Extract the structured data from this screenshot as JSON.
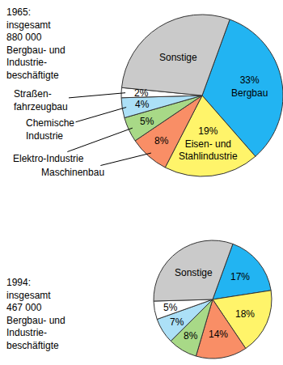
{
  "chart_data": [
    {
      "type": "pie",
      "title": "1965:\ninsgesamt\n880 000\nBergbau- und\nIndustrie-\nbeschäftigte",
      "categories": [
        "Bergbau",
        "Eisen- und\nStahlindustrie",
        "Maschinenbau",
        "Elektro-Industrie",
        "Chemische\nIndustrie",
        "Straßen-\nfahrzeugbau",
        "Sonstige"
      ],
      "values": [
        33,
        19,
        8,
        5,
        4,
        2,
        29
      ],
      "value_labels": [
        "33%",
        "19%",
        "8%",
        "5%",
        "4%",
        "2%",
        null
      ],
      "colors": [
        "#22b4f2",
        "#fff46a",
        "#f98e66",
        "#a8d987",
        "#ace0f7",
        "#ffffff",
        "#cacaca"
      ],
      "data_labels": true
    },
    {
      "type": "pie",
      "title": "1994:\ninsgesamt\n467 000\nBergbau- und\nIndustrie-\nbeschäftigte",
      "categories": [
        null,
        null,
        null,
        null,
        null,
        null,
        "Sonstige"
      ],
      "values": [
        17,
        18,
        14,
        8,
        7,
        5,
        31
      ],
      "value_labels": [
        "17%",
        "18%",
        "14%",
        "8%",
        "7%",
        "5%",
        null
      ],
      "colors": [
        "#22b4f2",
        "#fff46a",
        "#f98e66",
        "#a8d987",
        "#ace0f7",
        "#ffffff",
        "#cacaca"
      ],
      "data_labels": true
    }
  ]
}
